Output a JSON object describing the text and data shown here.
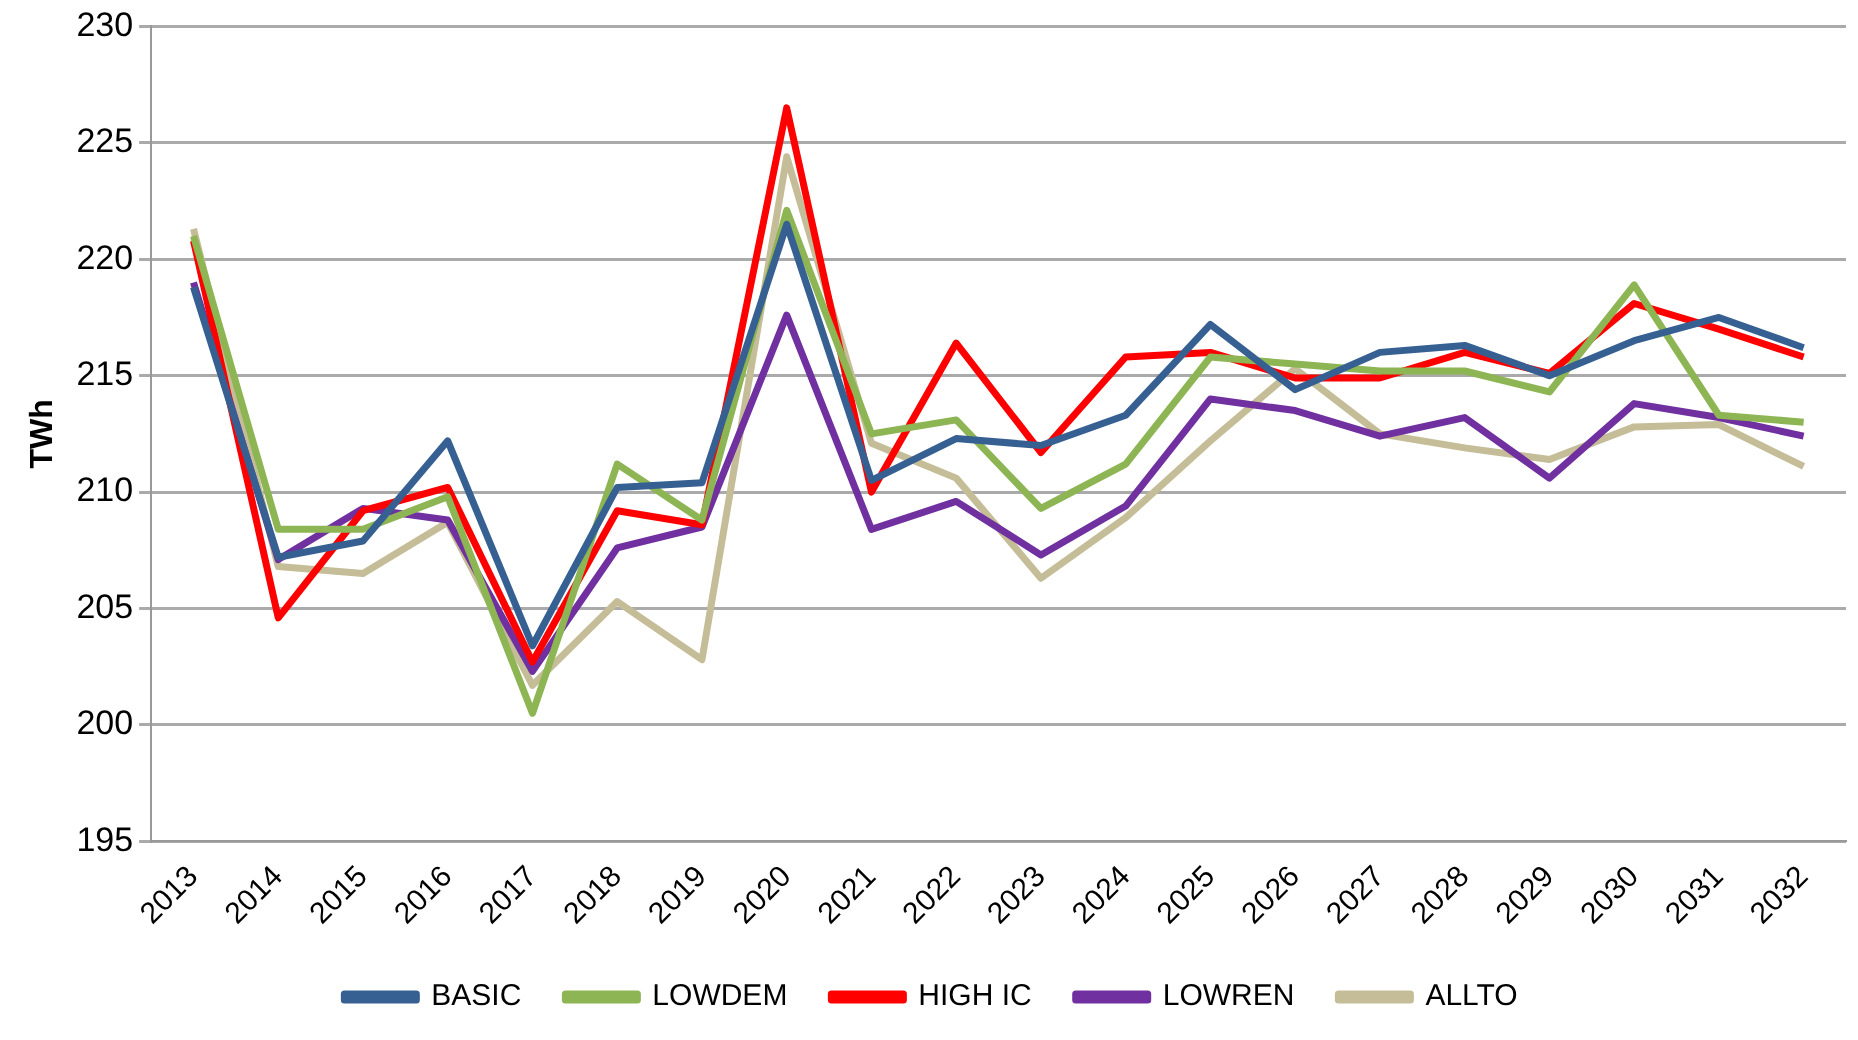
{
  "chart_data": {
    "type": "line",
    "ylabel": "TWh",
    "categories": [
      "2013",
      "2014",
      "2015",
      "2016",
      "2017",
      "2018",
      "2019",
      "2020",
      "2021",
      "2022",
      "2023",
      "2024",
      "2025",
      "2026",
      "2027",
      "2028",
      "2029",
      "2030",
      "2031",
      "2032"
    ],
    "series": [
      {
        "name": "BASIC",
        "color": "#376092",
        "values": [
          218.8,
          207.2,
          207.9,
          212.2,
          203.4,
          210.2,
          210.4,
          221.5,
          210.5,
          212.3,
          212.0,
          213.3,
          217.2,
          214.4,
          216.0,
          216.3,
          215.0,
          216.5,
          217.5,
          216.2
        ]
      },
      {
        "name": "LOWDEM",
        "color": "#8db553",
        "values": [
          221.0,
          208.4,
          208.4,
          209.8,
          200.5,
          211.2,
          208.8,
          222.1,
          212.5,
          213.1,
          209.3,
          211.2,
          215.8,
          215.5,
          215.2,
          215.2,
          214.3,
          218.9,
          213.3,
          213.0
        ]
      },
      {
        "name": "HIGH IC",
        "color": "#ff0000",
        "values": [
          220.8,
          204.6,
          209.2,
          210.2,
          202.7,
          209.2,
          208.6,
          226.5,
          210.0,
          216.4,
          211.7,
          215.8,
          216.0,
          214.9,
          214.9,
          216.0,
          215.1,
          218.1,
          217.0,
          215.8
        ]
      },
      {
        "name": "LOWREN",
        "color": "#7030a0",
        "values": [
          219.0,
          207.1,
          209.3,
          208.8,
          202.3,
          207.6,
          208.5,
          217.6,
          208.4,
          209.6,
          207.3,
          209.4,
          214.0,
          213.5,
          212.4,
          213.2,
          210.6,
          213.8,
          213.2,
          212.4
        ]
      },
      {
        "name": "ALLTO",
        "color": "#c4bd97",
        "values": [
          221.3,
          206.8,
          206.5,
          208.7,
          201.7,
          205.3,
          202.8,
          224.4,
          212.1,
          210.6,
          206.3,
          208.9,
          212.2,
          215.3,
          212.5,
          211.9,
          211.4,
          212.8,
          212.9,
          211.1
        ]
      }
    ],
    "ylim": [
      195,
      230
    ],
    "yticks": [
      195,
      200,
      205,
      210,
      215,
      220,
      225,
      230
    ],
    "grid": "y",
    "legend": "bottom",
    "marker": "none",
    "line_style": "solid"
  }
}
